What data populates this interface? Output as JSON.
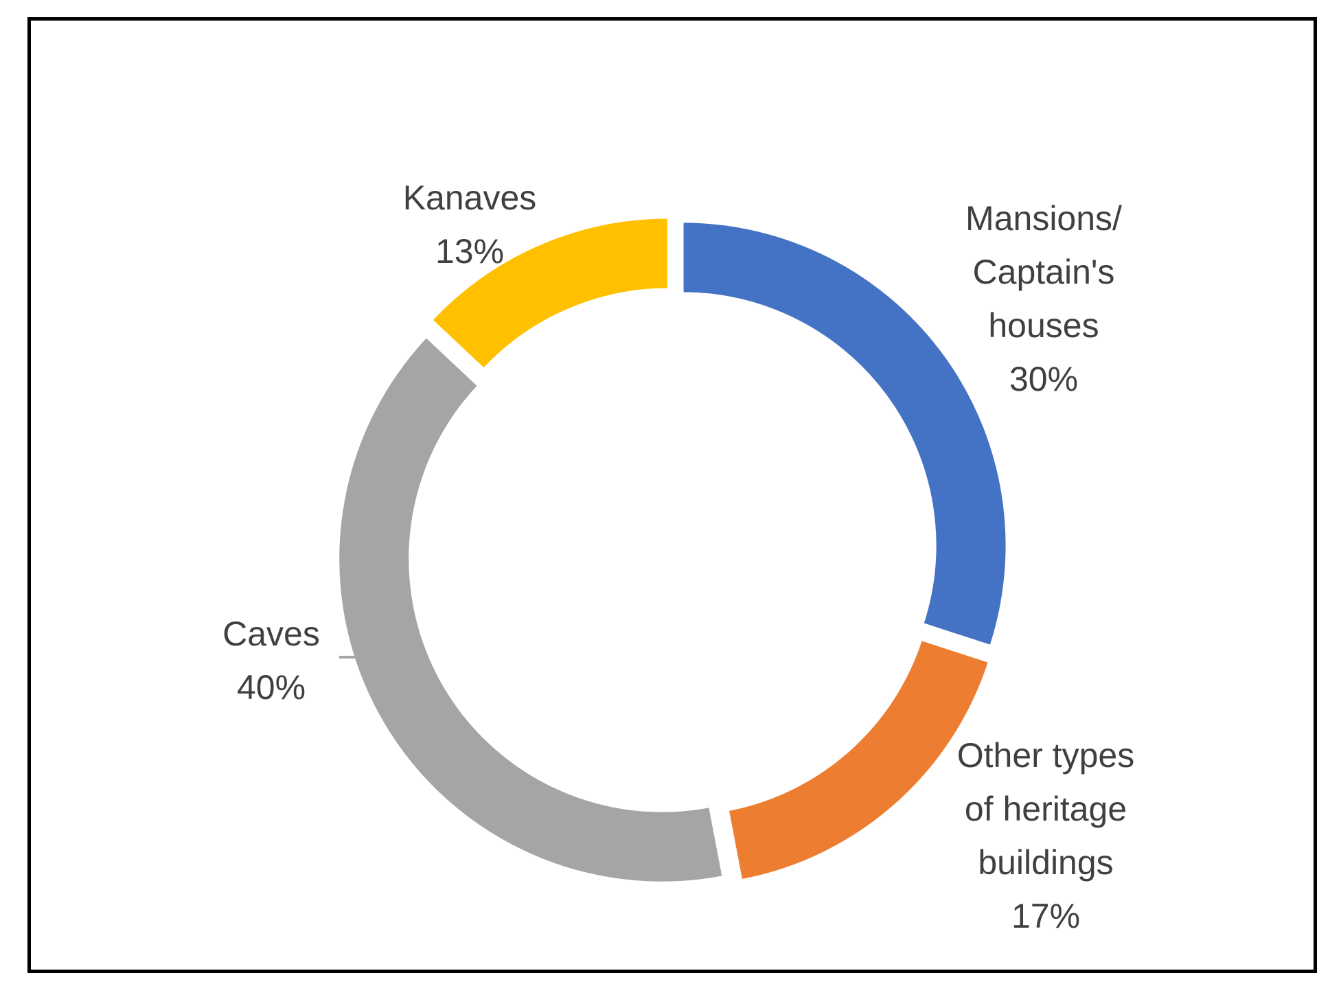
{
  "chart_data": {
    "type": "donut",
    "title": "",
    "slices": [
      {
        "label_lines": [
          "Mansions/",
          "Captain's",
          "houses"
        ],
        "label": "Mansions/ Captain's houses",
        "value": 30,
        "value_label": "30%",
        "color": "#4472C4"
      },
      {
        "label_lines": [
          "Other types",
          "of heritage",
          "buildings"
        ],
        "label": "Other types of heritage buildings",
        "value": 17,
        "value_label": "17%",
        "color": "#ED7D31"
      },
      {
        "label_lines": [
          "Caves"
        ],
        "label": "Caves",
        "value": 40,
        "value_label": "40%",
        "color": "#A5A5A5"
      },
      {
        "label_lines": [
          "Kanaves"
        ],
        "label": "Kanaves",
        "value": 13,
        "value_label": "13%",
        "color": "#FFC000"
      }
    ],
    "start_angle_deg": 0,
    "direction": "clockwise",
    "exploded": true,
    "legend": "none",
    "label_color": "#404040",
    "frame_color": "#000000"
  }
}
